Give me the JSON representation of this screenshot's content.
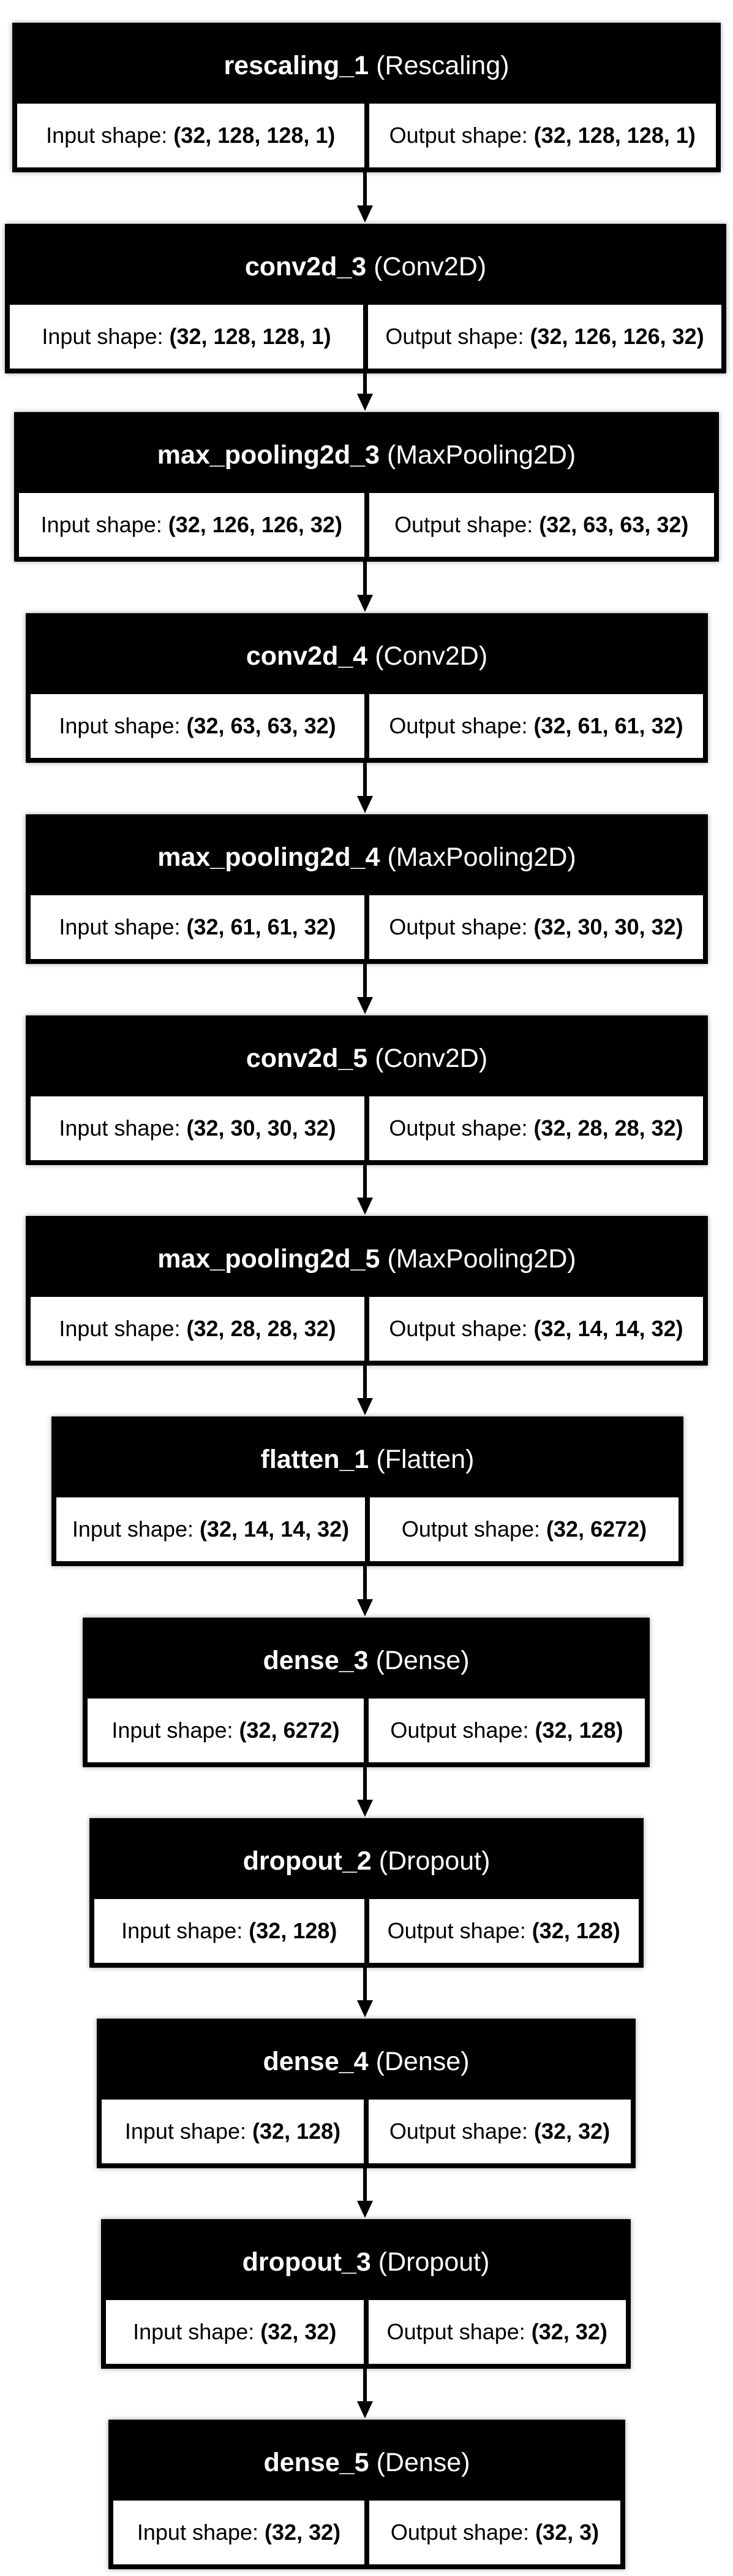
{
  "shape_labels": {
    "input": "Input shape:",
    "output": "Output shape:"
  },
  "layers": [
    {
      "name": "rescaling_1",
      "type": "(Rescaling)",
      "input": "(32, 128, 128, 1)",
      "output": "(32, 128, 128, 1)"
    },
    {
      "name": "conv2d_3",
      "type": "(Conv2D)",
      "input": "(32, 128, 128, 1)",
      "output": "(32, 126, 126, 32)"
    },
    {
      "name": "max_pooling2d_3",
      "type": "(MaxPooling2D)",
      "input": "(32, 126, 126, 32)",
      "output": "(32, 63, 63, 32)"
    },
    {
      "name": "conv2d_4",
      "type": "(Conv2D)",
      "input": "(32, 63, 63, 32)",
      "output": "(32, 61, 61, 32)"
    },
    {
      "name": "max_pooling2d_4",
      "type": "(MaxPooling2D)",
      "input": "(32, 61, 61, 32)",
      "output": "(32, 30, 30, 32)"
    },
    {
      "name": "conv2d_5",
      "type": "(Conv2D)",
      "input": "(32, 30, 30, 32)",
      "output": "(32, 28, 28, 32)"
    },
    {
      "name": "max_pooling2d_5",
      "type": "(MaxPooling2D)",
      "input": "(32, 28, 28, 32)",
      "output": "(32, 14, 14, 32)"
    },
    {
      "name": "flatten_1",
      "type": "(Flatten)",
      "input": "(32, 14, 14, 32)",
      "output": "(32, 6272)"
    },
    {
      "name": "dense_3",
      "type": "(Dense)",
      "input": "(32, 6272)",
      "output": "(32, 128)"
    },
    {
      "name": "dropout_2",
      "type": "(Dropout)",
      "input": "(32, 128)",
      "output": "(32, 128)"
    },
    {
      "name": "dense_4",
      "type": "(Dense)",
      "input": "(32, 128)",
      "output": "(32, 32)"
    },
    {
      "name": "dropout_3",
      "type": "(Dropout)",
      "input": "(32, 32)",
      "output": "(32, 32)"
    },
    {
      "name": "dense_5",
      "type": "(Dense)",
      "input": "(32, 32)",
      "output": "(32, 3)"
    }
  ]
}
